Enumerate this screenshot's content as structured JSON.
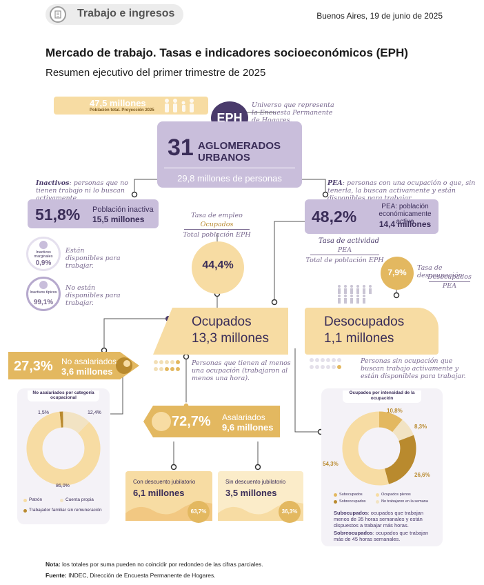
{
  "header": {
    "tag": "Trabajo e ingresos",
    "date": "Buenos Aires, 19 de junio de 2025"
  },
  "title": "Mercado de trabajo. Tasas e indicadores socioeconómicos (EPH)",
  "subtitle": "Resumen ejecutivo del primer trimestre de 2025",
  "population": {
    "value": "47,5 millones",
    "label": "Población total. Proyección 2025"
  },
  "eph": {
    "badge": "EPH",
    "note": "Universo que representa la Encuesta Permanente de Hogares.",
    "number": "31",
    "line1": "AGLOMERADOS",
    "line2": "URBANOS",
    "persons": "29,8 millones de personas"
  },
  "inactive": {
    "note_bold": "Inactivos",
    "note_rest": ": personas que no tienen trabajo ni lo buscan activamente.",
    "pct": "51,8%",
    "label": "Población inactiva",
    "value": "15,5 millones",
    "marginal_label": "Inactivos marginales",
    "marginal_pct": "0,9%",
    "marginal_note": "Están disponibles para trabajar.",
    "typical_label": "Inactivos típicos",
    "typical_pct": "99,1%",
    "typical_note": "No están disponibles para trabajar."
  },
  "pea": {
    "note_bold": "PEA",
    "note_rest": ": personas con una ocupación o que, sin tenerla, la buscan activamente y están disponibles para trabajar.",
    "pct": "48,2%",
    "label": "PEA: población económicamente activa",
    "value": "14,4 millones",
    "rate_title": "Tasa de actividad",
    "rate_num": "PEA",
    "rate_den": "Total de población EPH"
  },
  "employment_rate": {
    "title": "Tasa de empleo",
    "num": "Ocupados",
    "den": "Total población EPH",
    "value": "44,4%"
  },
  "unemployment_rate": {
    "title": "Tasa de desocupación",
    "num": "Desocupados",
    "den": "PEA",
    "value": "7,9%"
  },
  "employed": {
    "title": "Ocupados",
    "value": "13,3 millones",
    "note": "Personas que tienen al menos una ocupación (trabajaron al menos una hora)."
  },
  "unemployed": {
    "title": "Desocupados",
    "value": "1,1 millones",
    "note": "Personas sin ocupación que buscan trabajo activamente y están disponibles para trabajar."
  },
  "non_salaried": {
    "pct": "27,3%",
    "label": "No asalariados",
    "value": "3,6 millones"
  },
  "salaried": {
    "pct": "72,7%",
    "label": "Asalariados",
    "value": "9,6 millones"
  },
  "with_pension": {
    "label": "Con descuento jubilatorio",
    "value": "6,1 millones",
    "pct": "63,7%"
  },
  "without_pension": {
    "label": "Sin descuento jubilatorio",
    "value": "3,5 millones",
    "pct": "36,3%"
  },
  "donut_left": {
    "title": "No asalariados por categoría ocupacional",
    "label_a": "1,5%",
    "label_b": "12,4%",
    "label_c": "86,0%",
    "legend": [
      "Patrón",
      "Cuenta propia",
      "Trabajador familiar sin remuneración"
    ]
  },
  "donut_right": {
    "title": "Ocupados por intensidad de la ocupación",
    "label_a": "10,8%",
    "label_b": "8,3%",
    "label_c": "26,6%",
    "label_d": "54,3%",
    "legend": [
      "Subocupados",
      "Ocupados plenos",
      "Sobreocupados",
      "No trabajaron en la semana"
    ],
    "def1_bold": "Subocupados",
    "def1_rest": ": ocupados que trabajan menos de 35 horas semanales y están dispuestos a trabajar más horas.",
    "def2_bold": "Sobreocupados",
    "def2_rest": ": ocupados que trabajan más de 45 horas semanales."
  },
  "chart_data": [
    {
      "type": "pie",
      "title": "No asalariados por categoría ocupacional",
      "categories": [
        "Trabajador familiar sin remuneración",
        "Patrón",
        "Cuenta propia"
      ],
      "values": [
        1.5,
        12.4,
        86.0
      ]
    },
    {
      "type": "pie",
      "title": "Ocupados por intensidad de la ocupación",
      "categories": [
        "Subocupados",
        "No trabajaron en la semana",
        "Sobreocupados",
        "Ocupados plenos"
      ],
      "values": [
        10.8,
        8.3,
        26.6,
        54.3
      ]
    }
  ],
  "footer": {
    "note_bold": "Nota:",
    "note": " los totales por suma pueden no coincidir por redondeo de las cifras parciales.",
    "source_bold": "Fuente:",
    "source": " INDEC, Dirección de Encuesta Permanente de Hogares."
  },
  "colors": {
    "lavender": "#c9bedb",
    "purple": "#4a3b6b",
    "gold": "#e3b860",
    "pale_gold": "#f7dca3",
    "brown": "#b98a2e"
  }
}
